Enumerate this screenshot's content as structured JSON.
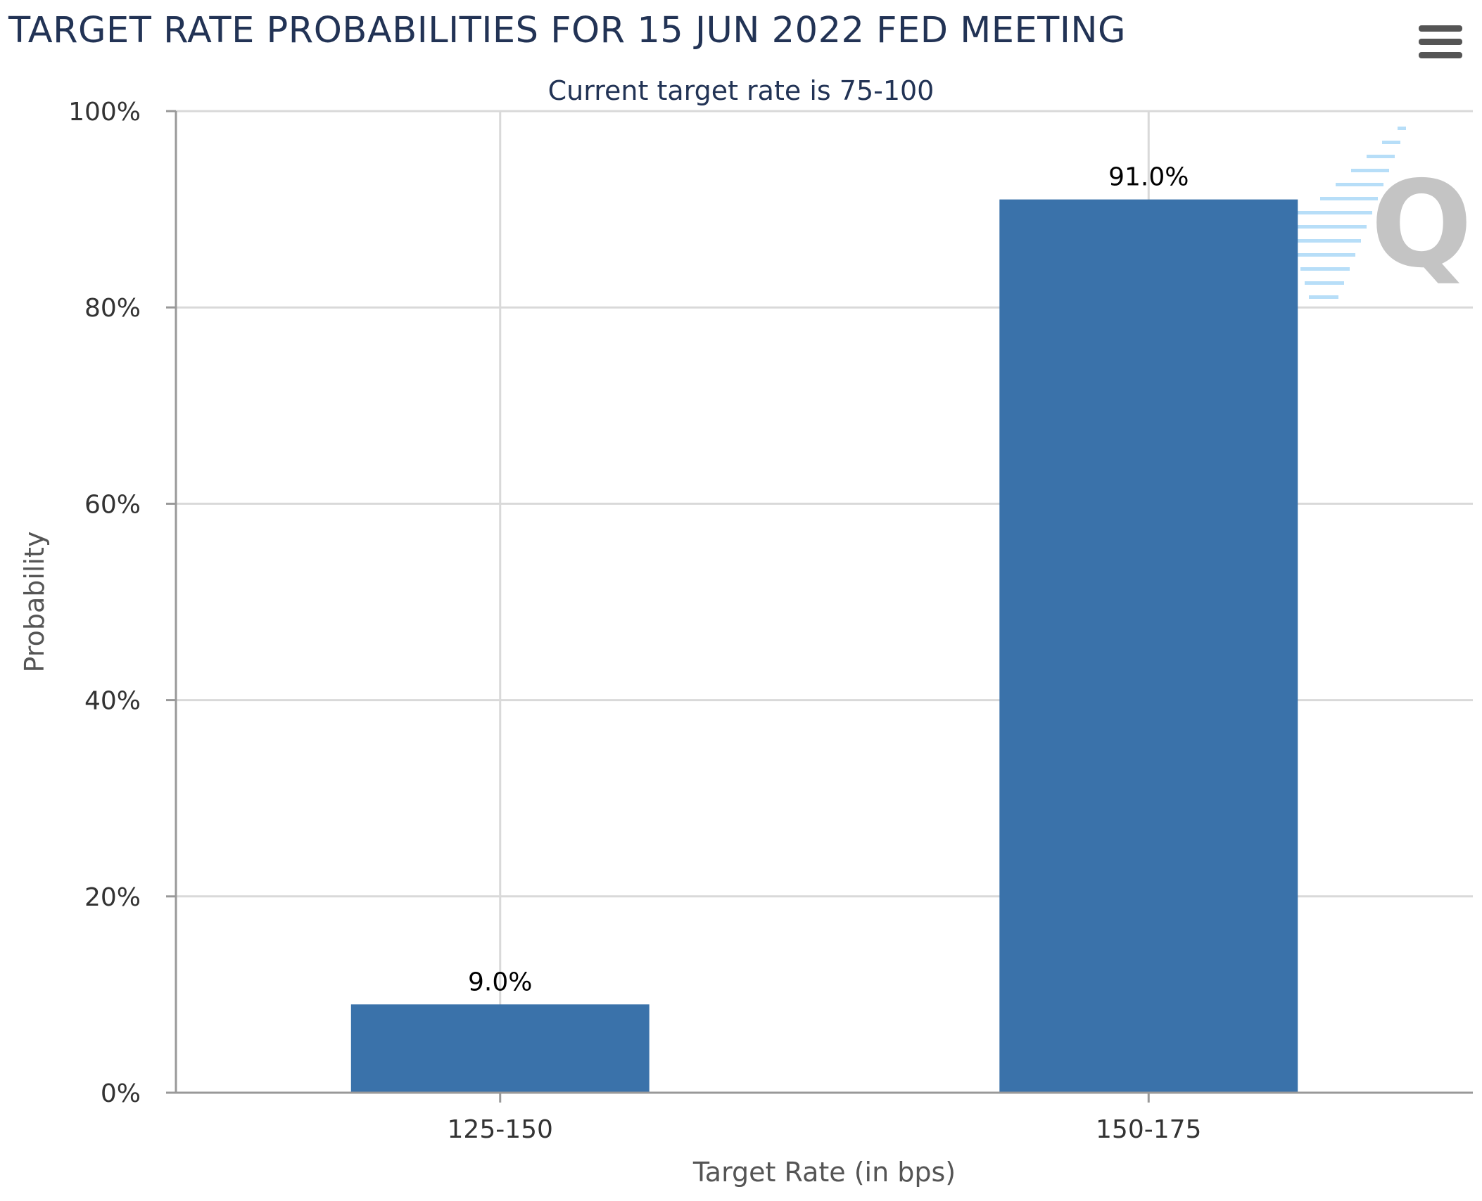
{
  "header": {
    "title": "TARGET RATE PROBABILITIES FOR 15 JUN 2022 FED MEETING",
    "subtitle": "Current target rate is 75-100",
    "menu_icon": "hamburger-menu-icon"
  },
  "watermark": {
    "letter": "Q"
  },
  "colors": {
    "bar": "#3a72aa",
    "title": "#223355",
    "grid": "#d9d9d9",
    "axis": "#999999",
    "tick_text": "#333333",
    "axis_label": "#555555",
    "watermark_text": "#c4c4c4",
    "watermark_stripes": "#9fd3f5"
  },
  "chart_data": {
    "type": "bar",
    "title": "TARGET RATE PROBABILITIES FOR 15 JUN 2022 FED MEETING",
    "subtitle": "Current target rate is 75-100",
    "categories": [
      "125-150",
      "150-175"
    ],
    "values": [
      9.0,
      91.0
    ],
    "data_labels": [
      "9.0%",
      "91.0%"
    ],
    "xlabel": "Target Rate (in bps)",
    "ylabel": "Probability",
    "ylim": [
      0,
      100
    ],
    "yticks": [
      0,
      20,
      40,
      60,
      80,
      100
    ],
    "ytick_labels": [
      "0%",
      "20%",
      "40%",
      "60%",
      "80%",
      "100%"
    ],
    "grid": true,
    "legend": "none"
  }
}
